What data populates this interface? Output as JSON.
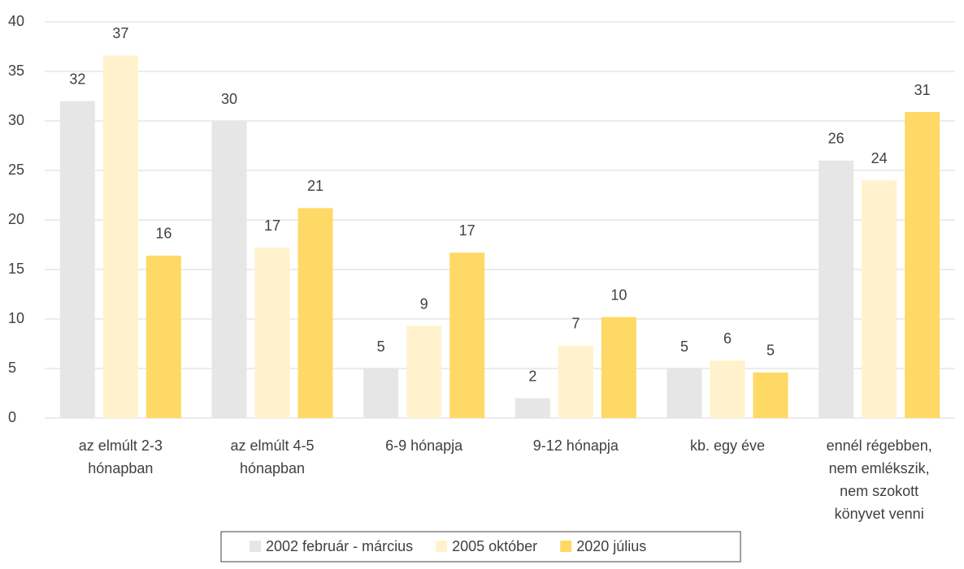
{
  "chart_data": {
    "type": "bar",
    "categories": [
      [
        "az elmúlt 2-3",
        "hónapban"
      ],
      [
        "az elmúlt 4-5",
        "hónapban"
      ],
      [
        "6-9 hónapja"
      ],
      [
        "9-12 hónapja"
      ],
      [
        "kb. egy éve"
      ],
      [
        "ennél régebben,",
        "nem emlékszik,",
        "nem szokott",
        "könyvet venni"
      ]
    ],
    "series": [
      {
        "name": "2002 február - március",
        "color": "#e7e6e6",
        "values": [
          32,
          30,
          5,
          2,
          5,
          26
        ]
      },
      {
        "name": "2005 október",
        "color": "#fff2cc",
        "values": [
          36.6,
          17.2,
          9.3,
          7.3,
          5.8,
          24
        ],
        "value_labels": [
          "37",
          "17",
          "9",
          "7",
          "6",
          "24"
        ]
      },
      {
        "name": "2020 július",
        "color": "#ffd966",
        "values": [
          16.4,
          21.2,
          16.7,
          10.2,
          4.6,
          30.9
        ],
        "value_labels": [
          "16",
          "21",
          "17",
          "10",
          "5",
          "31"
        ]
      }
    ],
    "ylim": [
      0,
      40
    ],
    "yticks": [
      0,
      5,
      10,
      15,
      20,
      25,
      30,
      35,
      40
    ],
    "grid": true,
    "legend": "bottom"
  }
}
